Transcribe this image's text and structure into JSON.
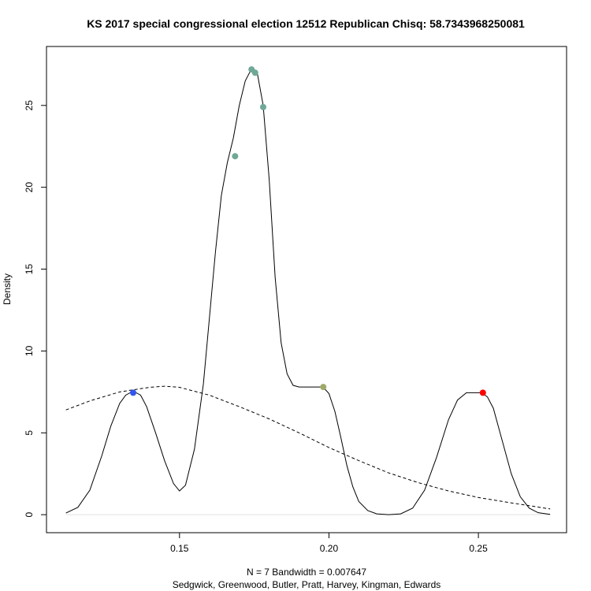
{
  "chart_data": {
    "type": "line",
    "title": "KS 2017 special congressional election 12512 Republican Chisq: 58.7343968250081",
    "ylabel": "Density",
    "xlabel_line1": "N = 7   Bandwidth = 0.007647",
    "xlabel_line2": "Sedgwick, Greenwood, Butler, Pratt, Harvey, Kingman, Edwards",
    "xlim": [
      0.1055,
      0.2795
    ],
    "ylim": [
      -1.1,
      28.6
    ],
    "x_ticks": [
      0.15,
      0.2,
      0.25
    ],
    "x_tick_labels": [
      "0.15",
      "0.20",
      "0.25"
    ],
    "y_ticks": [
      0,
      5,
      10,
      15,
      20,
      25
    ],
    "y_tick_labels": [
      "0",
      "5",
      "10",
      "15",
      "20",
      "25"
    ],
    "grid": false,
    "kde": {
      "name": "density",
      "style": "solid",
      "x": [
        0.112,
        0.116,
        0.12,
        0.124,
        0.127,
        0.13,
        0.132,
        0.134,
        0.135,
        0.137,
        0.139,
        0.142,
        0.145,
        0.148,
        0.15,
        0.152,
        0.155,
        0.158,
        0.16,
        0.162,
        0.164,
        0.166,
        0.168,
        0.17,
        0.172,
        0.174,
        0.175,
        0.176,
        0.178,
        0.18,
        0.182,
        0.184,
        0.186,
        0.188,
        0.19,
        0.192,
        0.194,
        0.196,
        0.198,
        0.2,
        0.202,
        0.204,
        0.206,
        0.208,
        0.21,
        0.213,
        0.216,
        0.22,
        0.224,
        0.228,
        0.232,
        0.236,
        0.24,
        0.243,
        0.246,
        0.249,
        0.251,
        0.253,
        0.255,
        0.258,
        0.261,
        0.264,
        0.267,
        0.27,
        0.274
      ],
      "y": [
        0.1,
        0.45,
        1.5,
        3.6,
        5.4,
        6.8,
        7.3,
        7.5,
        7.5,
        7.3,
        6.6,
        5.0,
        3.3,
        1.9,
        1.45,
        1.8,
        4.0,
        8.0,
        12.0,
        16.0,
        19.5,
        21.5,
        23.0,
        25.0,
        26.5,
        27.2,
        27.2,
        27.0,
        25.0,
        20.5,
        14.5,
        10.5,
        8.6,
        7.9,
        7.8,
        7.8,
        7.8,
        7.8,
        7.8,
        7.4,
        6.3,
        4.7,
        3.0,
        1.7,
        0.8,
        0.25,
        0.05,
        0.0,
        0.05,
        0.4,
        1.5,
        3.5,
        5.8,
        7.0,
        7.45,
        7.45,
        7.45,
        7.2,
        6.5,
        4.5,
        2.5,
        1.1,
        0.4,
        0.12,
        0.02
      ]
    },
    "normal_fit": {
      "name": "normal",
      "style": "dashed",
      "x": [
        0.112,
        0.12,
        0.13,
        0.14,
        0.145,
        0.15,
        0.16,
        0.17,
        0.18,
        0.19,
        0.2,
        0.21,
        0.22,
        0.23,
        0.24,
        0.25,
        0.26,
        0.274
      ],
      "y": [
        6.4,
        6.95,
        7.5,
        7.78,
        7.85,
        7.78,
        7.3,
        6.6,
        5.85,
        5.0,
        4.1,
        3.3,
        2.55,
        1.95,
        1.45,
        1.05,
        0.75,
        0.35
      ]
    },
    "points": [
      {
        "x": 0.1345,
        "y": 7.45,
        "color": "#3355ee"
      },
      {
        "x": 0.1686,
        "y": 21.9,
        "color": "#70a898"
      },
      {
        "x": 0.1741,
        "y": 27.2,
        "color": "#70a898"
      },
      {
        "x": 0.1753,
        "y": 27.0,
        "color": "#70a898"
      },
      {
        "x": 0.178,
        "y": 24.9,
        "color": "#70a898"
      },
      {
        "x": 0.1981,
        "y": 7.8,
        "color": "#a0a868"
      },
      {
        "x": 0.2515,
        "y": 7.45,
        "color": "#ff0000"
      }
    ]
  }
}
